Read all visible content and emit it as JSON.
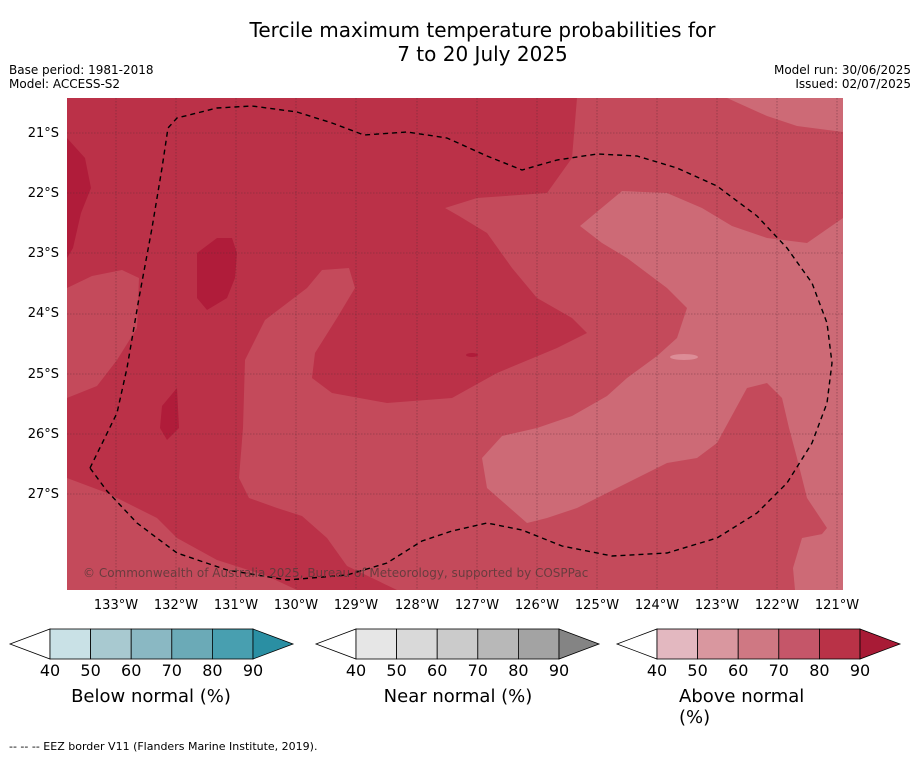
{
  "title": {
    "line1": "Tercile maximum temperature probabilities for",
    "line2": "7 to 20 July 2025"
  },
  "meta": {
    "base_period": "Base period: 1981-2018",
    "model": "Model: ACCESS-S2",
    "model_run": "Model run: 30/06/2025",
    "issued": "Issued: 02/07/2025"
  },
  "map": {
    "copyright": "© Commonwealth of Australia 2025, Bureau of Meteorology, supported by COSPPac",
    "lat_labels": [
      "21°S",
      "22°S",
      "23°S",
      "24°S",
      "25°S",
      "26°S",
      "27°S"
    ],
    "lon_labels": [
      "133°W",
      "132°W",
      "131°W",
      "130°W",
      "129°W",
      "128°W",
      "127°W",
      "126°W",
      "125°W",
      "124°W",
      "123°W",
      "122°W",
      "121°W"
    ],
    "colors": {
      "p90": "#b01c3a",
      "p80": "#bb3148",
      "p70": "#c44a5b",
      "p60": "#cd6a76"
    }
  },
  "legends": [
    {
      "label": "Below normal (%)",
      "ticks": [
        "40",
        "50",
        "60",
        "70",
        "80",
        "90"
      ],
      "colors": [
        "#ffffff",
        "#c9e1e6",
        "#a8c9d0",
        "#8ab8c3",
        "#6baab7",
        "#489fb0",
        "#2a8fa3"
      ]
    },
    {
      "label": "Near normal (%)",
      "ticks": [
        "40",
        "50",
        "60",
        "70",
        "80",
        "90"
      ],
      "colors": [
        "#ffffff",
        "#e6e6e6",
        "#d9d9d9",
        "#cbcbcb",
        "#b8b8b8",
        "#a3a3a3",
        "#848484"
      ]
    },
    {
      "label": "Above normal (%)",
      "ticks": [
        "40",
        "50",
        "60",
        "70",
        "80",
        "90"
      ],
      "colors": [
        "#ffffff",
        "#e3b8c0",
        "#d9979f",
        "#cf7883",
        "#c55669",
        "#b93247",
        "#a81b36"
      ]
    }
  ],
  "footnote": "--  --  -- EEZ border V11 (Flanders Marine Institute, 2019)."
}
